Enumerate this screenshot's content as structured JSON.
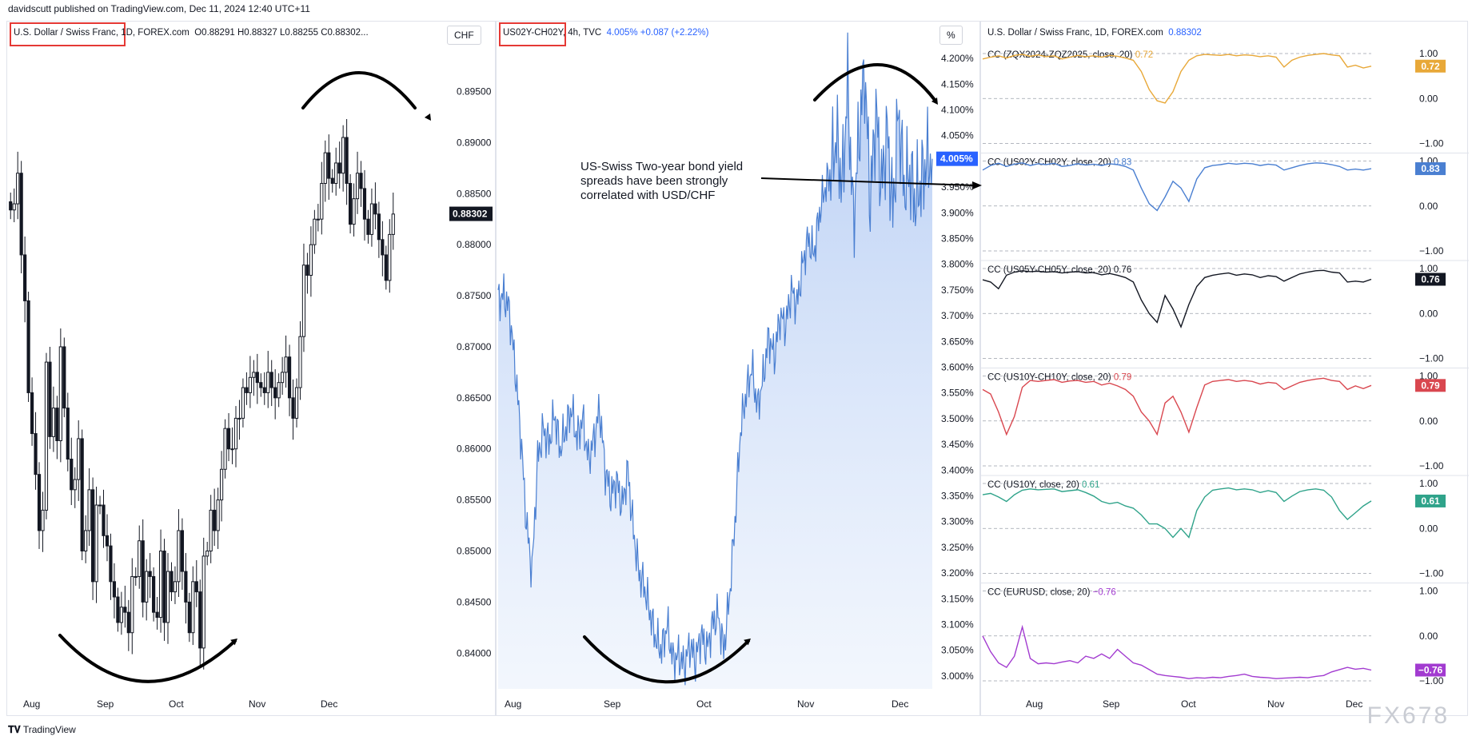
{
  "header": {
    "publisher": "davidscutt published on TradingView.com, Dec 11, 2024 12:40 UTC+11"
  },
  "footer": {
    "brand": "TradingView"
  },
  "watermark": "FX678",
  "annotation": {
    "lines": [
      "US-Swiss Two-year bond yield",
      "spreads have been strongly",
      "correlated with USD/CHF"
    ]
  },
  "colors": {
    "up": "#131722",
    "line2": "#4a7fd1",
    "cc1": "#e8a838",
    "cc2": "#4a7fd1",
    "cc3": "#131722",
    "cc4": "#d9474f",
    "cc5": "#2fa38a",
    "cc6": "#a23bd0"
  },
  "chart_data": [
    {
      "type": "candlestick",
      "legend": {
        "name": "U.S. Dollar / Swiss Franc",
        "interval": "1D",
        "source": "FOREX.com",
        "o": "O0.88291",
        "h": "H0.88327",
        "l": "L0.88255",
        "c": "C0.88302..."
      },
      "unit": "CHF",
      "last_price": "0.88302",
      "x_ticks": [
        "Aug",
        "Sep",
        "Oct",
        "Nov",
        "Dec"
      ],
      "y_ticks": [
        "0.89500",
        "0.89000",
        "0.88500",
        "0.88000",
        "0.87500",
        "0.87000",
        "0.86500",
        "0.86000",
        "0.85500",
        "0.85000",
        "0.84500",
        "0.84000"
      ],
      "ylim": [
        0.8365,
        0.8995
      ],
      "closes": [
        0.8834,
        0.884,
        0.887,
        0.879,
        0.8745,
        0.8655,
        0.8615,
        0.8575,
        0.852,
        0.854,
        0.8685,
        0.8612,
        0.864,
        0.8608,
        0.87,
        0.864,
        0.859,
        0.856,
        0.857,
        0.861,
        0.85,
        0.852,
        0.856,
        0.847,
        0.8545,
        0.8545,
        0.8515,
        0.8505,
        0.847,
        0.8455,
        0.843,
        0.8445,
        0.844,
        0.842,
        0.8475,
        0.8475,
        0.851,
        0.845,
        0.848,
        0.8475,
        0.844,
        0.8435,
        0.85,
        0.843,
        0.848,
        0.846,
        0.847,
        0.852,
        0.848,
        0.845,
        0.842,
        0.847,
        0.846,
        0.8405,
        0.8495,
        0.85,
        0.854,
        0.852,
        0.855,
        0.858,
        0.862,
        0.86,
        0.86,
        0.863,
        0.863,
        0.866,
        0.8655,
        0.867,
        0.8675,
        0.8665,
        0.866,
        0.8655,
        0.8675,
        0.866,
        0.865,
        0.8665,
        0.8675,
        0.869,
        0.865,
        0.863,
        0.866,
        0.871,
        0.878,
        0.877,
        0.88,
        0.8825,
        0.8825,
        0.886,
        0.889,
        0.8865,
        0.886,
        0.888,
        0.887,
        0.8905,
        0.886,
        0.882,
        0.8845,
        0.887,
        0.8855,
        0.8825,
        0.881,
        0.884,
        0.883,
        0.8805,
        0.879,
        0.8765,
        0.881,
        0.883
      ],
      "title": "",
      "xlabel": "",
      "ylabel": ""
    },
    {
      "type": "area",
      "legend": {
        "name": "US02Y-CH02Y",
        "interval": "4h",
        "source": "TVC",
        "value": "4.005%",
        "change": "+0.087 (+2.22%)"
      },
      "unit": "%",
      "last_value": "4.005%",
      "x_ticks": [
        "Aug",
        "Sep",
        "Oct",
        "Nov",
        "Dec"
      ],
      "y_ticks": [
        "4.200%",
        "4.150%",
        "4.100%",
        "4.050%",
        "4.000%",
        "3.950%",
        "3.900%",
        "3.850%",
        "3.800%",
        "3.750%",
        "3.700%",
        "3.650%",
        "3.600%",
        "3.550%",
        "3.500%",
        "3.450%",
        "3.400%",
        "3.350%",
        "3.300%",
        "3.250%",
        "3.200%",
        "3.150%",
        "3.100%",
        "3.050%",
        "3.000%"
      ],
      "ylim": [
        2.975,
        4.225
      ],
      "values": [
        3.73,
        3.74,
        3.71,
        3.6,
        3.47,
        3.3,
        3.2,
        3.42,
        3.48,
        3.45,
        3.51,
        3.44,
        3.48,
        3.52,
        3.46,
        3.5,
        3.42,
        3.46,
        3.52,
        3.4,
        3.35,
        3.38,
        3.33,
        3.4,
        3.28,
        3.2,
        3.17,
        3.12,
        3.07,
        3.05,
        3.1,
        3.03,
        3.04,
        3.02,
        3.06,
        3.03,
        3.08,
        3.05,
        3.1,
        3.12,
        3.05,
        3.15,
        3.3,
        3.48,
        3.55,
        3.6,
        3.52,
        3.58,
        3.66,
        3.62,
        3.7,
        3.68,
        3.75,
        3.72,
        3.8,
        3.85,
        3.82,
        3.9,
        3.95,
        3.98,
        4.05,
        3.95,
        4.15,
        3.88,
        4.05,
        4.18,
        3.92,
        4.1,
        3.95,
        4.06,
        3.9,
        4.1,
        3.95,
        3.98,
        3.92,
        3.96,
        4.0,
        4.005
      ],
      "title": "",
      "xlabel": "",
      "ylabel": ""
    },
    {
      "type": "line",
      "x_ticks": [
        "Aug",
        "Sep",
        "Oct",
        "Nov",
        "Dec"
      ],
      "y_ticks": [
        "1.00",
        "0.00",
        "−1.00"
      ],
      "ylim": [
        -1,
        1
      ],
      "panes": [
        {
          "name": "CC (ZQX2024-ZQZ2025, close, 20)",
          "value": "0.72",
          "values": [
            0.88,
            0.92,
            0.95,
            0.9,
            0.96,
            0.98,
            0.94,
            0.97,
            0.93,
            0.95,
            0.88,
            0.92,
            0.96,
            0.93,
            0.95,
            0.92,
            0.96,
            0.94,
            0.9,
            0.85,
            0.6,
            0.2,
            -0.05,
            -0.1,
            0.15,
            0.6,
            0.85,
            0.95,
            0.98,
            0.97,
            0.96,
            0.98,
            0.95,
            0.97,
            0.96,
            0.93,
            0.95,
            0.92,
            0.7,
            0.85,
            0.92,
            0.96,
            0.98,
            1.0,
            0.97,
            0.95,
            0.7,
            0.74,
            0.68,
            0.72
          ]
        },
        {
          "name": "CC (US02Y-CH02Y, close, 20)",
          "value": "0.83",
          "values": [
            0.8,
            0.9,
            0.95,
            0.88,
            0.93,
            0.96,
            0.9,
            0.94,
            0.92,
            0.95,
            0.88,
            0.9,
            0.94,
            0.91,
            0.93,
            0.9,
            0.94,
            0.92,
            0.88,
            0.8,
            0.4,
            0.05,
            -0.1,
            0.2,
            0.55,
            0.4,
            0.1,
            0.6,
            0.85,
            0.9,
            0.92,
            0.95,
            0.93,
            0.95,
            0.94,
            0.9,
            0.93,
            0.91,
            0.8,
            0.85,
            0.9,
            0.94,
            0.96,
            0.95,
            0.92,
            0.88,
            0.8,
            0.82,
            0.8,
            0.83
          ]
        },
        {
          "name": "CC (US05Y-CH05Y, close, 20)",
          "value": "0.76",
          "values": [
            0.75,
            0.7,
            0.55,
            0.85,
            0.92,
            0.95,
            0.93,
            0.94,
            0.92,
            0.93,
            0.9,
            0.92,
            0.93,
            0.9,
            0.91,
            0.86,
            0.89,
            0.85,
            0.8,
            0.7,
            0.3,
            0.0,
            -0.2,
            0.4,
            0.1,
            -0.3,
            0.2,
            0.6,
            0.8,
            0.85,
            0.88,
            0.9,
            0.85,
            0.88,
            0.86,
            0.8,
            0.84,
            0.82,
            0.72,
            0.8,
            0.88,
            0.92,
            0.95,
            0.96,
            0.92,
            0.9,
            0.7,
            0.72,
            0.7,
            0.76
          ]
        },
        {
          "name": "CC (US10Y-CH10Y, close, 20)",
          "value": "0.79",
          "values": [
            0.7,
            0.6,
            0.2,
            -0.3,
            0.1,
            0.75,
            0.9,
            0.88,
            0.9,
            0.92,
            0.86,
            0.89,
            0.9,
            0.86,
            0.88,
            0.8,
            0.84,
            0.78,
            0.7,
            0.55,
            0.2,
            0.0,
            -0.3,
            0.4,
            0.55,
            0.2,
            -0.25,
            0.3,
            0.8,
            0.88,
            0.9,
            0.92,
            0.88,
            0.9,
            0.88,
            0.82,
            0.86,
            0.84,
            0.7,
            0.78,
            0.86,
            0.9,
            0.93,
            0.95,
            0.9,
            0.88,
            0.7,
            0.78,
            0.72,
            0.79
          ]
        },
        {
          "name": "CC (US10Y, close, 20)",
          "value": "0.61",
          "values": [
            0.75,
            0.78,
            0.7,
            0.6,
            0.75,
            0.85,
            0.88,
            0.86,
            0.87,
            0.88,
            0.82,
            0.84,
            0.86,
            0.8,
            0.72,
            0.6,
            0.55,
            0.58,
            0.5,
            0.45,
            0.3,
            0.1,
            0.1,
            0.0,
            -0.2,
            0.0,
            -0.2,
            0.4,
            0.7,
            0.85,
            0.88,
            0.9,
            0.86,
            0.88,
            0.86,
            0.8,
            0.84,
            0.8,
            0.6,
            0.72,
            0.82,
            0.86,
            0.88,
            0.85,
            0.7,
            0.4,
            0.2,
            0.35,
            0.5,
            0.61
          ]
        },
        {
          "name": "CC (EURUSD, close, 20)",
          "value": "−0.76",
          "values": [
            0.0,
            -0.35,
            -0.6,
            -0.7,
            -0.45,
            0.2,
            -0.5,
            -0.62,
            -0.6,
            -0.62,
            -0.58,
            -0.55,
            -0.6,
            -0.45,
            -0.5,
            -0.4,
            -0.5,
            -0.3,
            -0.45,
            -0.6,
            -0.65,
            -0.75,
            -0.85,
            -0.88,
            -0.9,
            -0.92,
            -0.95,
            -0.93,
            -0.94,
            -0.92,
            -0.93,
            -0.9,
            -0.88,
            -0.85,
            -0.9,
            -0.92,
            -0.93,
            -0.95,
            -0.94,
            -0.93,
            -0.92,
            -0.93,
            -0.9,
            -0.88,
            -0.8,
            -0.75,
            -0.7,
            -0.74,
            -0.72,
            -0.76
          ]
        }
      ],
      "title": "",
      "xlabel": "",
      "ylabel": ""
    }
  ]
}
